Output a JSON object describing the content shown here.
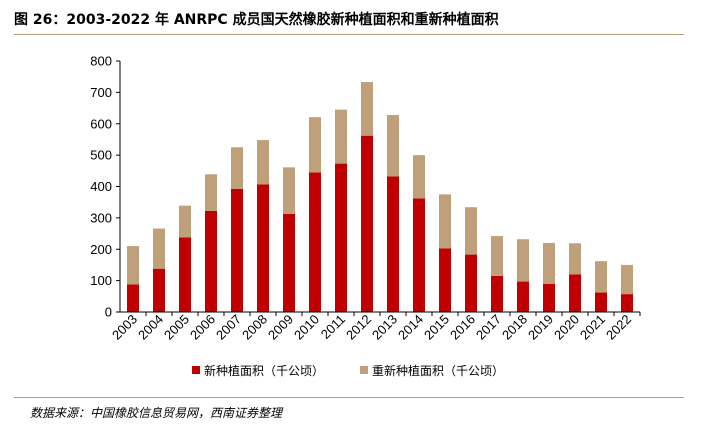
{
  "header": {
    "title": "图 26：2003-2022 年 ANRPC 成员国天然橡胶新种植面积和重新种植面积"
  },
  "footer": {
    "source": "数据来源：中国橡胶信息贸易网，西南证券整理"
  },
  "colors": {
    "new_planting": "#c00000",
    "replanting": "#bfa07a",
    "rule": "#b89b74"
  },
  "chart_data": {
    "type": "bar",
    "stacked": true,
    "categories": [
      "2003",
      "2004",
      "2005",
      "2006",
      "2007",
      "2008",
      "2009",
      "2010",
      "2011",
      "2012",
      "2013",
      "2014",
      "2015",
      "2016",
      "2017",
      "2018",
      "2019",
      "2020",
      "2021",
      "2022"
    ],
    "series": [
      {
        "name": "新种植面积（千公顷）",
        "color": "#c00000",
        "values": [
          88,
          138,
          238,
          322,
          392,
          407,
          313,
          445,
          473,
          562,
          432,
          362,
          203,
          183,
          115,
          97,
          90,
          120,
          62,
          57
        ]
      },
      {
        "name": "重新种植面积（千公顷）",
        "color": "#bfa07a",
        "values": [
          122,
          128,
          101,
          117,
          133,
          141,
          148,
          176,
          172,
          171,
          196,
          138,
          172,
          151,
          127,
          135,
          130,
          99,
          100,
          93
        ]
      }
    ],
    "ylim": [
      0,
      800
    ],
    "yticks": [
      0,
      100,
      200,
      300,
      400,
      500,
      600,
      700,
      800
    ],
    "title": "",
    "xlabel": "",
    "ylabel": "",
    "legend_position": "bottom",
    "grid": false
  }
}
